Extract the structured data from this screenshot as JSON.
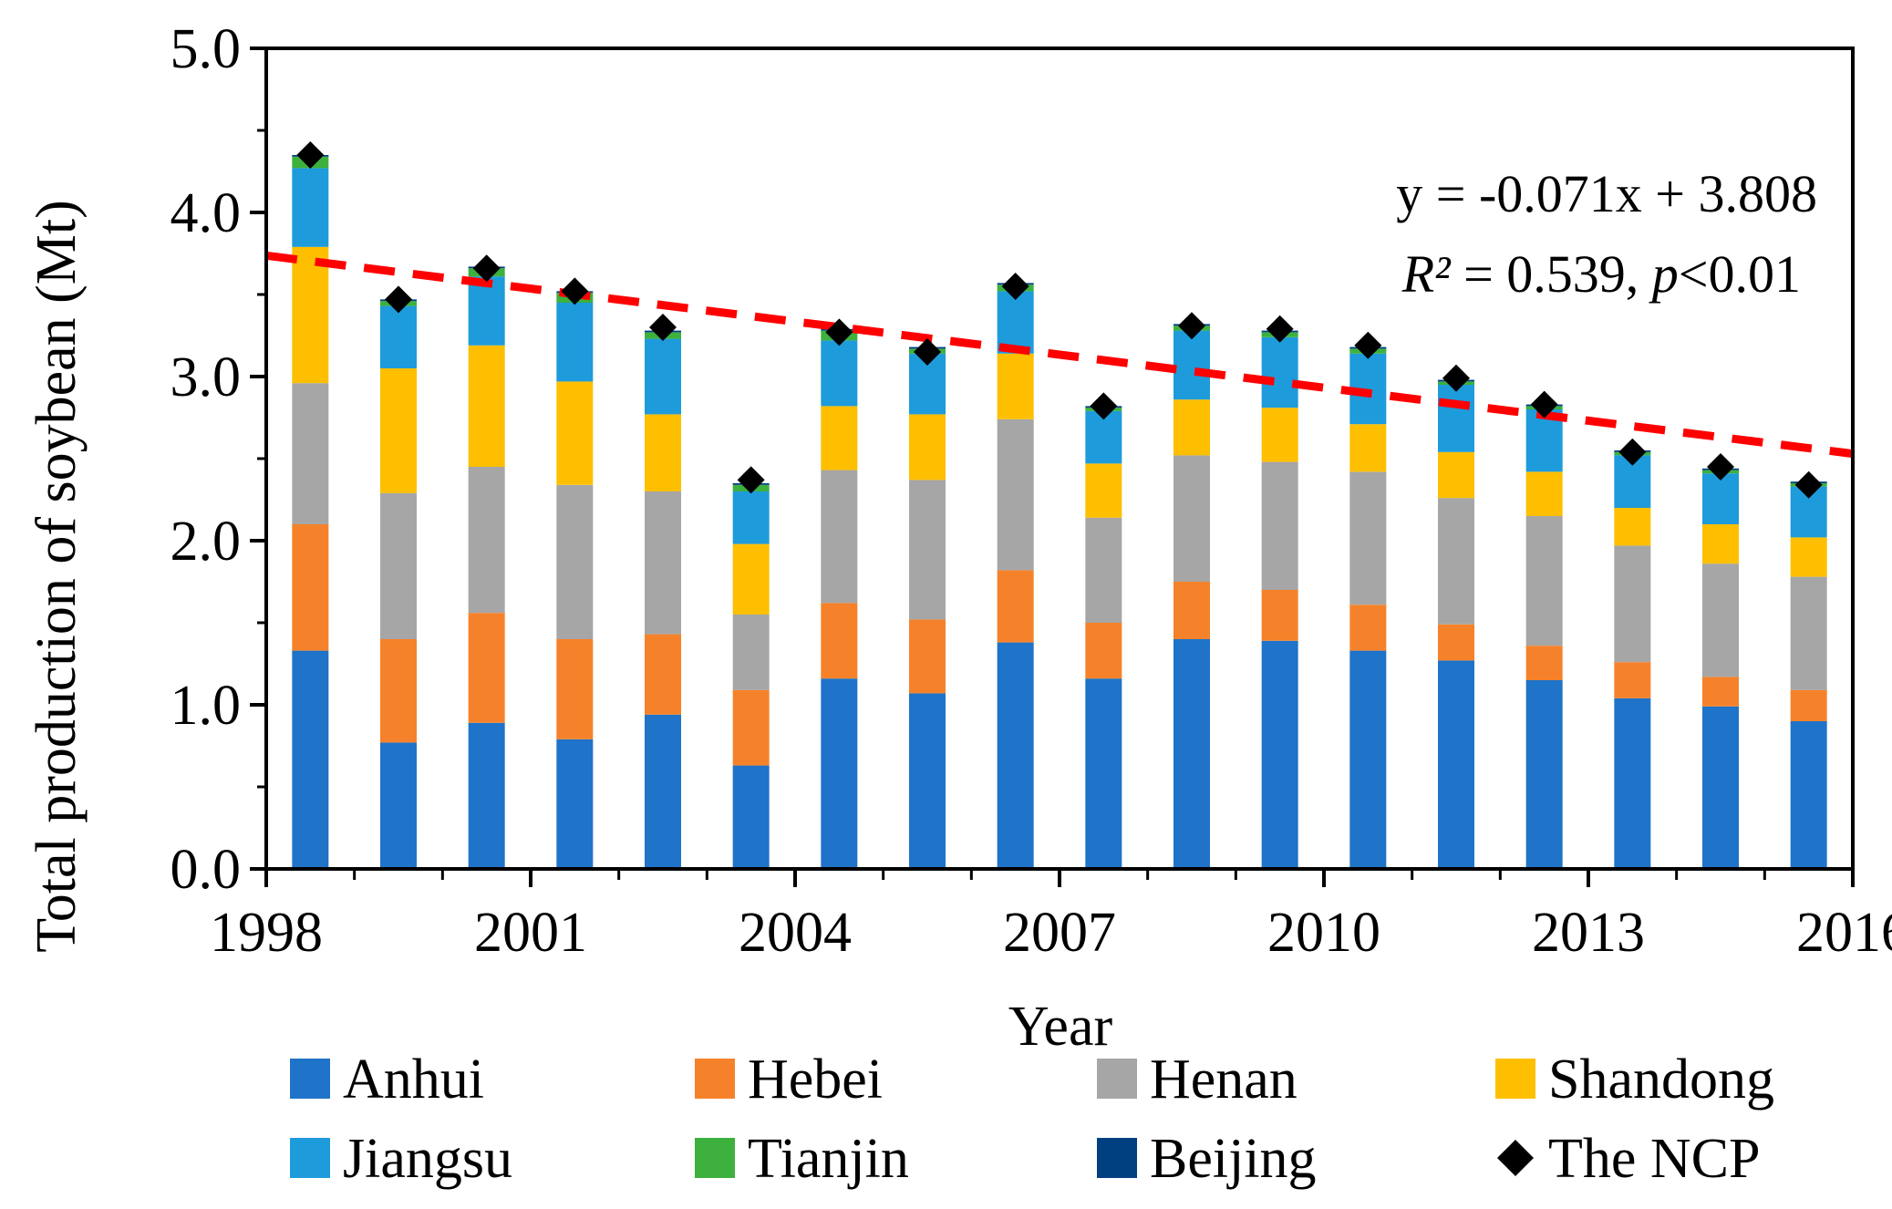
{
  "chart_data": {
    "type": "bar",
    "stacked": true,
    "xlabel": "Year",
    "ylabel": "Total production of soybean (Mt)",
    "ylim": [
      0,
      5
    ],
    "yticks": [
      "0.0",
      "1.0",
      "2.0",
      "3.0",
      "4.0",
      "5.0"
    ],
    "xlim": [
      1998,
      2016
    ],
    "xtick_labels": [
      "1998",
      "2001",
      "2004",
      "2007",
      "2010",
      "2013",
      "2016"
    ],
    "categories": [
      "1998",
      "1999",
      "2000",
      "2001",
      "2002",
      "2003",
      "2004",
      "2005",
      "2006",
      "2007",
      "2008",
      "2009",
      "2010",
      "2011",
      "2012",
      "2013",
      "2014",
      "2015"
    ],
    "series": [
      {
        "name": "Anhui",
        "color": "#1f73c8",
        "values": [
          1.33,
          0.77,
          0.89,
          0.79,
          0.94,
          0.63,
          1.16,
          1.07,
          1.38,
          1.16,
          1.4,
          1.39,
          1.33,
          1.27,
          1.15,
          1.04,
          0.99,
          0.9
        ]
      },
      {
        "name": "Hebei",
        "color": "#f5822a",
        "values": [
          0.77,
          0.63,
          0.67,
          0.61,
          0.49,
          0.46,
          0.46,
          0.45,
          0.44,
          0.34,
          0.35,
          0.31,
          0.28,
          0.22,
          0.21,
          0.22,
          0.18,
          0.19
        ]
      },
      {
        "name": "Henan",
        "color": "#a6a6a6",
        "values": [
          0.86,
          0.89,
          0.89,
          0.94,
          0.87,
          0.46,
          0.81,
          0.85,
          0.92,
          0.64,
          0.77,
          0.78,
          0.81,
          0.77,
          0.79,
          0.71,
          0.69,
          0.69
        ]
      },
      {
        "name": "Shandong",
        "color": "#fdbf00",
        "values": [
          0.83,
          0.76,
          0.74,
          0.63,
          0.47,
          0.43,
          0.39,
          0.4,
          0.4,
          0.33,
          0.34,
          0.33,
          0.29,
          0.28,
          0.27,
          0.23,
          0.24,
          0.24
        ]
      },
      {
        "name": "Jiangsu",
        "color": "#1e9bdb",
        "values": [
          0.48,
          0.38,
          0.42,
          0.48,
          0.46,
          0.32,
          0.4,
          0.37,
          0.38,
          0.32,
          0.42,
          0.43,
          0.43,
          0.41,
          0.38,
          0.32,
          0.31,
          0.31
        ]
      },
      {
        "name": "Tianjin",
        "color": "#3db03d",
        "values": [
          0.07,
          0.03,
          0.05,
          0.06,
          0.04,
          0.04,
          0.06,
          0.03,
          0.04,
          0.02,
          0.03,
          0.03,
          0.03,
          0.02,
          0.02,
          0.02,
          0.02,
          0.02
        ]
      },
      {
        "name": "Beijing",
        "color": "#003f80",
        "values": [
          0.01,
          0.01,
          0.01,
          0.01,
          0.01,
          0.01,
          0.01,
          0.01,
          0.01,
          0.01,
          0.01,
          0.01,
          0.01,
          0.01,
          0.01,
          0.01,
          0.01,
          0.01
        ]
      }
    ],
    "markers": {
      "name": "The NCP",
      "color": "#000000",
      "values": [
        4.35,
        3.47,
        3.66,
        3.52,
        3.3,
        2.37,
        3.27,
        3.15,
        3.55,
        2.82,
        3.31,
        3.29,
        3.19,
        2.99,
        2.83,
        2.54,
        2.45,
        2.34
      ]
    },
    "trendline": {
      "slope": -0.071,
      "intercept": 3.808,
      "color": "#ff0000"
    },
    "annotation": {
      "line1": "y = -0.071x + 3.808",
      "r2_label": "R²",
      "r2_value": " = 0.539, ",
      "p_label": "p",
      "p_value": "<0.01"
    },
    "legend_position": "bottom",
    "grid": false
  }
}
